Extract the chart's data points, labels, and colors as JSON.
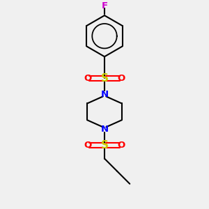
{
  "bg_color": "#f0f0f0",
  "atom_colors": {
    "C": "#000000",
    "N": "#0000ff",
    "S": "#cccc00",
    "O": "#ff0000",
    "F": "#cc00cc"
  },
  "bond_color": "#000000",
  "bond_width": 1.5,
  "fig_size": [
    3.0,
    3.0
  ],
  "dpi": 100,
  "xlim": [
    -1.3,
    1.3
  ],
  "ylim": [
    -2.8,
    3.2
  ]
}
